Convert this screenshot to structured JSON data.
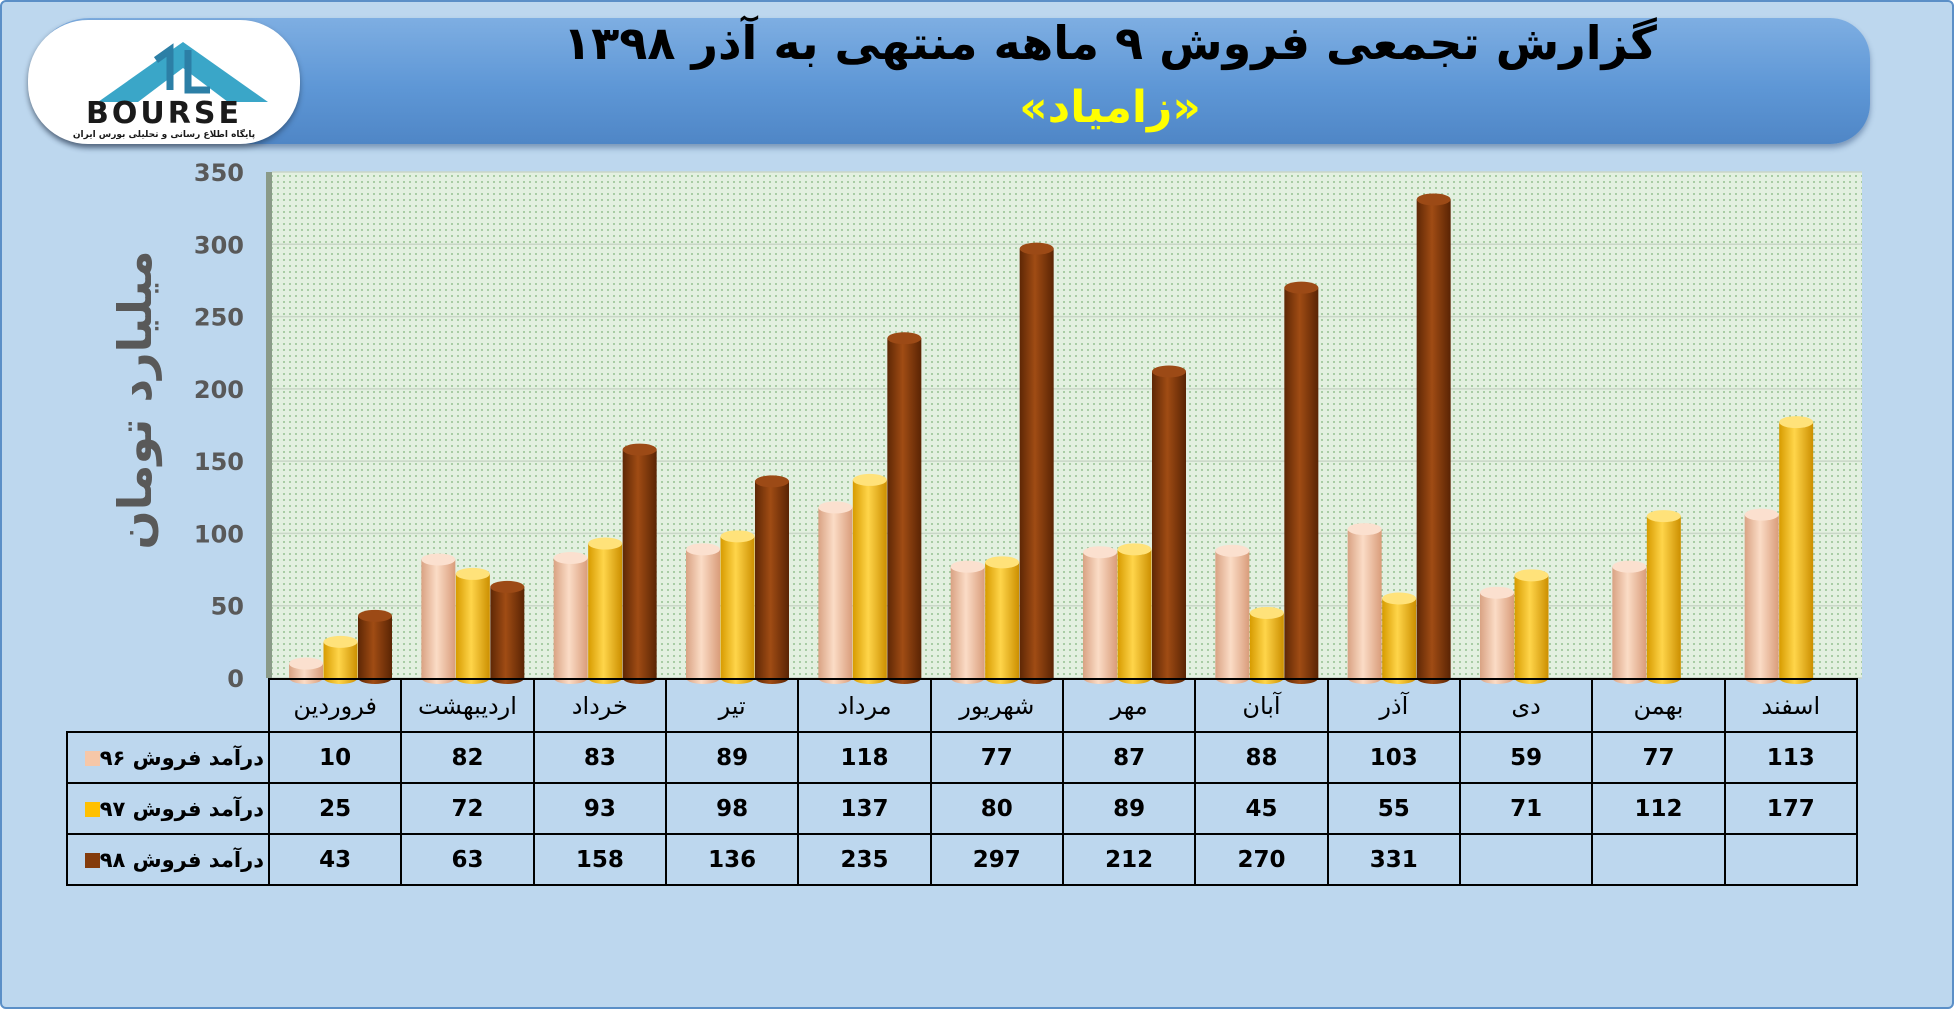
{
  "header": {
    "title": "گزارش تجمعی فروش ۹ ماهه منتهی به آذر ۱۳۹۸",
    "subtitle": "«زامیاد»"
  },
  "logo": {
    "text": "BOURSE",
    "caption": "پایگاه اطلاع رسانی و تحلیلی بورس ایران"
  },
  "colors": {
    "series_96": "#f6c7a8",
    "series_97": "#ffc000",
    "series_98": "#843c0c",
    "plot_background": "#e3f0e0",
    "frame": "#bdd7ee"
  },
  "chart_data": {
    "type": "bar",
    "title": "گزارش تجمعی فروش ۹ ماهه منتهی به آذر ۱۳۹۸",
    "subtitle": "«زامیاد»",
    "ylabel": "میلیارد تومان",
    "xlabel": "",
    "ylim": [
      0,
      350
    ],
    "yticks": [
      0,
      50,
      100,
      150,
      200,
      250,
      300,
      350
    ],
    "grid": true,
    "legend": "table-bottom",
    "categories": [
      "فروردین",
      "اردیبهشت",
      "خرداد",
      "تیر",
      "مرداد",
      "شهریور",
      "مهر",
      "آبان",
      "آذر",
      "دی",
      "بهمن",
      "اسفند"
    ],
    "series": [
      {
        "name": "درآمد فروش ۹۶",
        "color": "#f6c7a8",
        "values": [
          10,
          82,
          83,
          89,
          118,
          77,
          87,
          88,
          103,
          59,
          77,
          113
        ]
      },
      {
        "name": "درآمد فروش ۹۷",
        "color": "#ffc000",
        "values": [
          25,
          72,
          93,
          98,
          137,
          80,
          89,
          45,
          55,
          71,
          112,
          177
        ]
      },
      {
        "name": "درآمد فروش ۹۸",
        "color": "#843c0c",
        "values": [
          43,
          63,
          158,
          136,
          235,
          297,
          212,
          270,
          331,
          null,
          null,
          null
        ]
      }
    ]
  }
}
